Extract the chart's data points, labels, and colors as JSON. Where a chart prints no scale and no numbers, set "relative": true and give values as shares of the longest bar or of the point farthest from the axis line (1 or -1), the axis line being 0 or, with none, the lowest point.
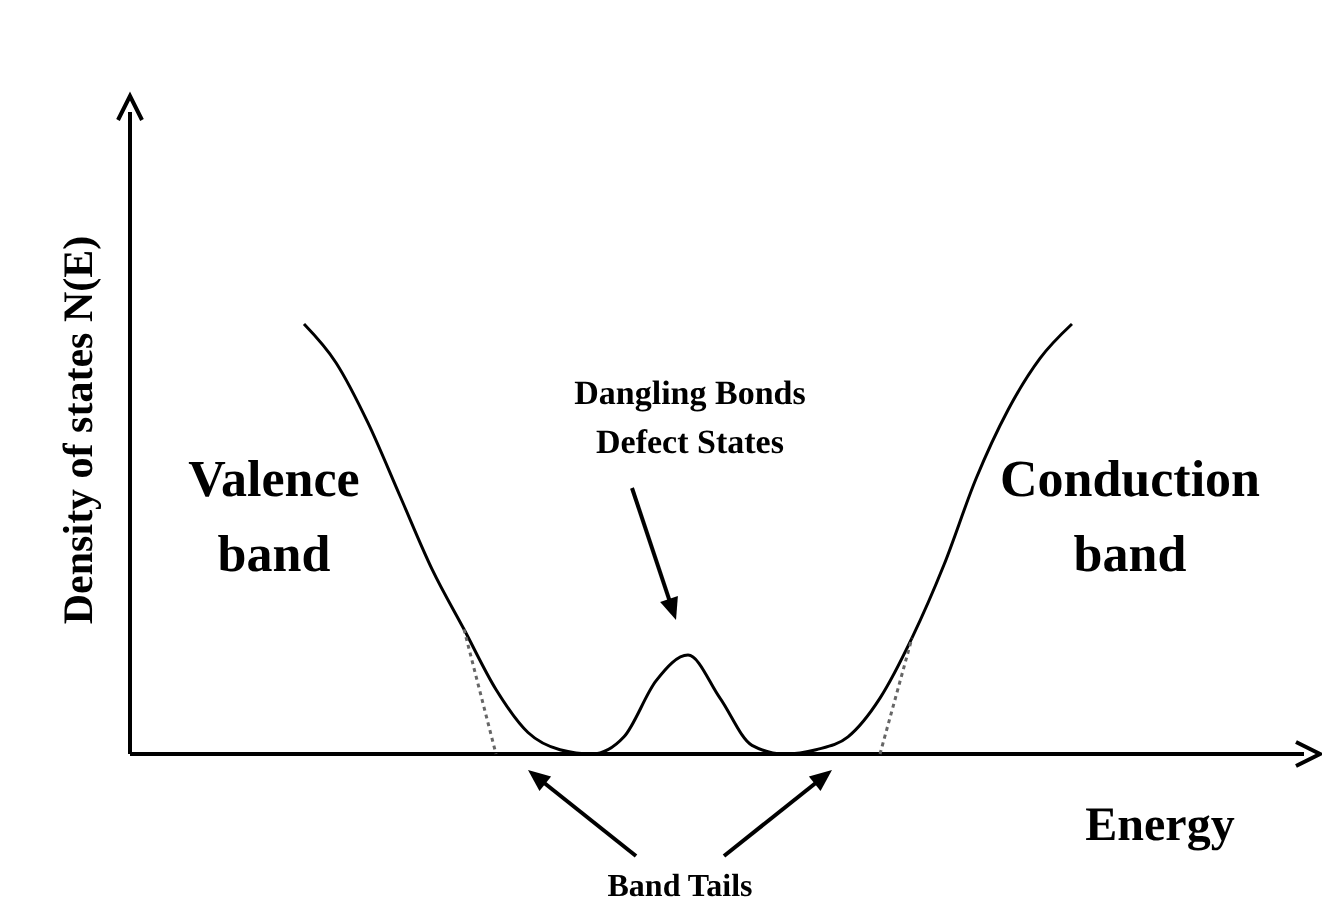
{
  "chart_data": {
    "type": "line",
    "relative": true,
    "xlabel": "Energy",
    "ylabel": "Density of states N(E)",
    "categories": [
      null,
      null,
      null,
      null,
      null,
      null,
      null,
      null,
      null,
      null,
      null,
      null,
      null,
      null,
      null,
      null,
      null,
      null,
      null,
      null,
      null,
      null,
      null,
      null,
      null
    ],
    "series": [
      {
        "color": "#000000",
        "line_style": "solid",
        "values": [
          1.0,
          0.91,
          0.77,
          0.6,
          0.43,
          0.29,
          0.15,
          0.05,
          0.01,
          0,
          0.04,
          0.17,
          0.23,
          0.13,
          0.02,
          0,
          0.01,
          0.04,
          0.13,
          0.27,
          0.44,
          0.64,
          0.8,
          0.92,
          1.0
        ]
      },
      {
        "color": "#666666",
        "line_style": "dotted",
        "values": [
          null,
          null,
          null,
          null,
          null,
          0.29,
          0,
          null,
          null,
          null,
          null,
          null,
          null,
          null,
          null,
          null,
          null,
          null,
          0,
          0.27,
          null,
          null,
          null,
          null,
          null
        ]
      }
    ],
    "annotations": [
      "Valence band",
      "Conduction band",
      "Dangling Bonds Defect States",
      "Band Tails"
    ]
  }
}
